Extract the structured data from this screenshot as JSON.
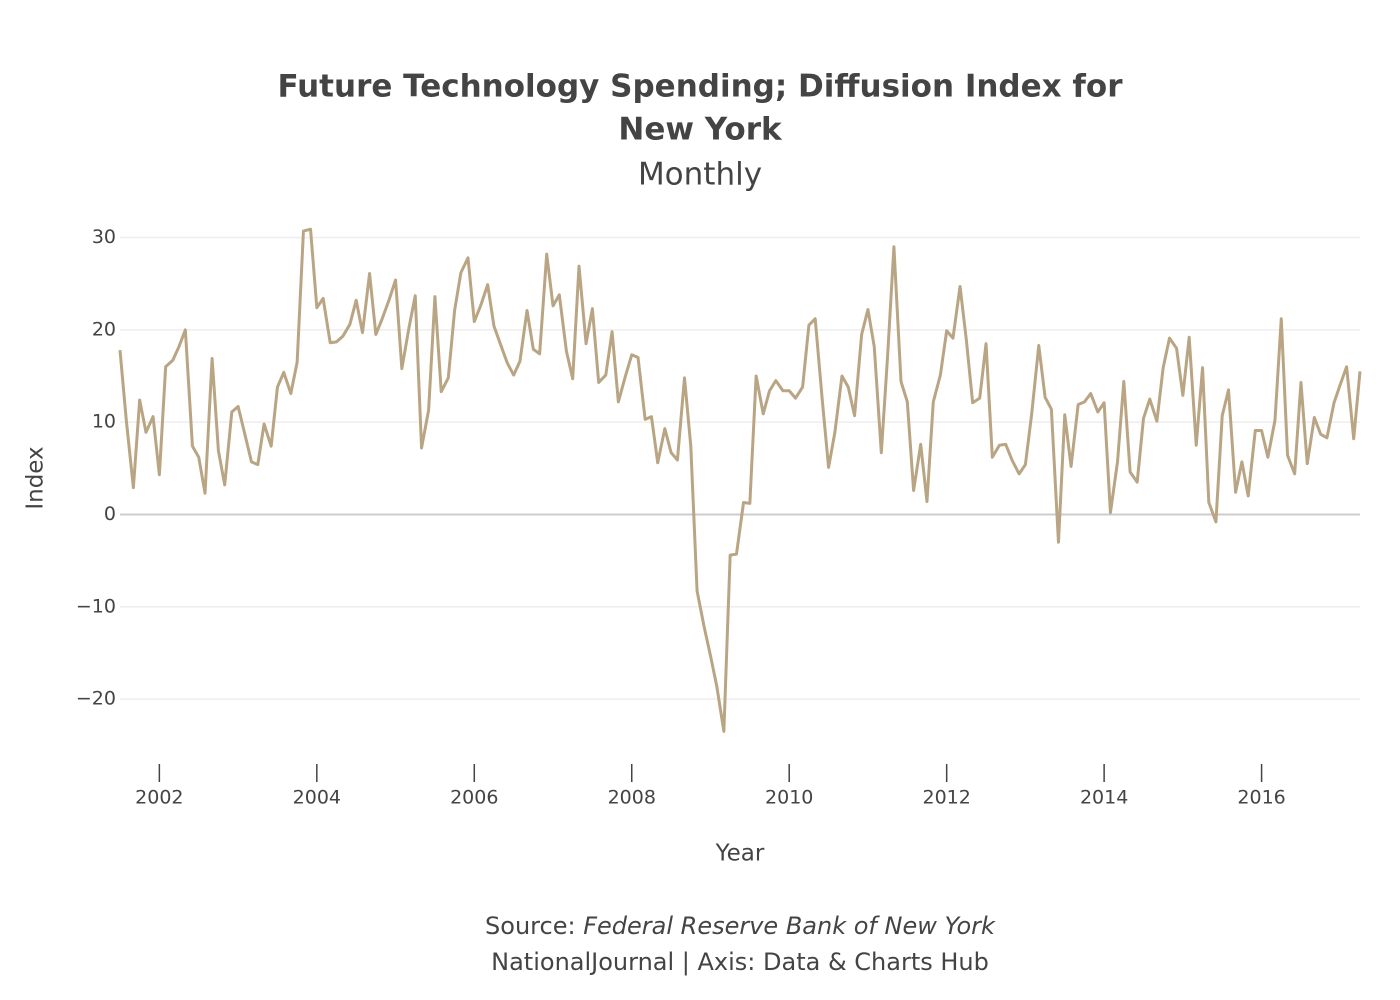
{
  "chart_data": {
    "type": "line",
    "title": [
      "Future Technology Spending; Diffusion Index for",
      "New York"
    ],
    "subtitle": "Monthly",
    "x_label": "Year",
    "y_label": "Index",
    "source_label": "Source:",
    "source": "Federal Reserve Bank of New York",
    "credit": "NationalJournal | Axis: Data & Charts Hub",
    "color": "#b9a583",
    "xlim": [
      2001.5,
      2017.25
    ],
    "xticks": [
      2002,
      2004,
      2006,
      2008,
      2010,
      2012,
      2014,
      2016
    ],
    "ylim": [
      -26.6,
      31.9
    ],
    "yticks": [
      {
        "value": -20,
        "label": "−20"
      },
      {
        "value": -10,
        "label": "−10"
      },
      0,
      10,
      20,
      30
    ],
    "grid": true,
    "x": [
      2001.5,
      2001.58,
      2001.67,
      2001.75,
      2001.83,
      2001.92,
      2002,
      2002.08,
      2002.17,
      2002.25,
      2002.33,
      2002.42,
      2002.5,
      2002.58,
      2002.67,
      2002.75,
      2002.83,
      2002.92,
      2003,
      2003.08,
      2003.17,
      2003.25,
      2003.33,
      2003.42,
      2003.5,
      2003.58,
      2003.67,
      2003.75,
      2003.83,
      2003.92,
      2004,
      2004.08,
      2004.17,
      2004.25,
      2004.33,
      2004.42,
      2004.5,
      2004.58,
      2004.67,
      2004.75,
      2004.83,
      2004.92,
      2005,
      2005.08,
      2005.17,
      2005.25,
      2005.33,
      2005.42,
      2005.5,
      2005.58,
      2005.67,
      2005.75,
      2005.83,
      2005.92,
      2006,
      2006.08,
      2006.17,
      2006.25,
      2006.33,
      2006.42,
      2006.5,
      2006.58,
      2006.67,
      2006.75,
      2006.83,
      2006.92,
      2007,
      2007.08,
      2007.17,
      2007.25,
      2007.33,
      2007.42,
      2007.5,
      2007.58,
      2007.67,
      2007.75,
      2007.83,
      2007.92,
      2008,
      2008.08,
      2008.17,
      2008.25,
      2008.33,
      2008.42,
      2008.5,
      2008.58,
      2008.67,
      2008.75,
      2008.83,
      2008.92,
      2009,
      2009.08,
      2009.17,
      2009.25,
      2009.33,
      2009.42,
      2009.5,
      2009.58,
      2009.67,
      2009.75,
      2009.83,
      2009.92,
      2010,
      2010.08,
      2010.17,
      2010.25,
      2010.33,
      2010.42,
      2010.5,
      2010.58,
      2010.67,
      2010.75,
      2010.83,
      2010.92,
      2011,
      2011.08,
      2011.17,
      2011.25,
      2011.33,
      2011.42,
      2011.5,
      2011.58,
      2011.67,
      2011.75,
      2011.83,
      2011.92,
      2012,
      2012.08,
      2012.17,
      2012.25,
      2012.33,
      2012.42,
      2012.5,
      2012.58,
      2012.67,
      2012.75,
      2012.83,
      2012.92,
      2013,
      2013.08,
      2013.17,
      2013.25,
      2013.33,
      2013.42,
      2013.5,
      2013.58,
      2013.67,
      2013.75,
      2013.83,
      2013.92,
      2014,
      2014.08,
      2014.17,
      2014.25,
      2014.33,
      2014.42,
      2014.5,
      2014.58,
      2014.67,
      2014.75,
      2014.83,
      2014.92,
      2015,
      2015.08,
      2015.17,
      2015.25,
      2015.33,
      2015.42,
      2015.5,
      2015.58,
      2015.67,
      2015.75,
      2015.83,
      2015.92,
      2016,
      2016.08,
      2016.17,
      2016.25,
      2016.33,
      2016.42,
      2016.5,
      2016.58,
      2016.67,
      2016.75,
      2016.83,
      2016.92,
      2017,
      2017.08,
      2017.17,
      2017.25
    ],
    "values": [
      17.8,
      10.2,
      2.9,
      12.4,
      8.9,
      10.6,
      4.3,
      16.0,
      16.7,
      18.2,
      20.0,
      7.4,
      6.2,
      2.3,
      16.9,
      6.9,
      3.2,
      11.1,
      11.7,
      8.9,
      5.7,
      5.4,
      9.8,
      7.4,
      13.8,
      15.4,
      13.1,
      16.5,
      30.7,
      30.9,
      22.4,
      23.4,
      18.6,
      18.7,
      19.3,
      20.6,
      23.2,
      19.7,
      26.1,
      19.5,
      21.2,
      23.3,
      25.4,
      15.8,
      20.2,
      23.7,
      7.2,
      11.3,
      23.6,
      13.3,
      14.8,
      22.1,
      26.2,
      27.8,
      20.9,
      22.6,
      24.9,
      20.4,
      18.5,
      16.4,
      15.1,
      16.6,
      22.1,
      17.9,
      17.4,
      28.2,
      22.6,
      23.8,
      17.7,
      14.7,
      26.9,
      18.5,
      22.3,
      14.3,
      15.1,
      19.8,
      12.2,
      15.0,
      17.3,
      17.0,
      10.3,
      10.6,
      5.6,
      9.3,
      6.7,
      5.9,
      14.8,
      7.4,
      -8.3,
      -12.2,
      -15.3,
      -18.6,
      -23.5,
      -4.4,
      -4.3,
      1.3,
      1.2,
      15.0,
      10.9,
      13.4,
      14.5,
      13.4,
      13.4,
      12.6,
      13.8,
      20.5,
      21.2,
      12.4,
      5.1,
      8.9,
      15.0,
      13.8,
      10.7,
      19.5,
      22.2,
      18.2,
      6.7,
      17.2,
      29.0,
      14.4,
      12.2,
      2.6,
      7.6,
      1.4,
      12.2,
      15.1,
      19.9,
      19.1,
      24.7,
      18.9,
      12.1,
      12.6,
      18.5,
      6.2,
      7.5,
      7.6,
      5.9,
      4.4,
      5.4,
      10.9,
      18.3,
      12.7,
      11.4,
      -3.0,
      10.8,
      5.2,
      11.9,
      12.2,
      13.1,
      11.1,
      12.1,
      0.2,
      5.7,
      14.4,
      4.6,
      3.5,
      10.4,
      12.5,
      10.1,
      15.9,
      19.1,
      18.0,
      12.9,
      19.2,
      7.5,
      15.9,
      1.3,
      -0.8,
      10.7,
      13.5,
      2.4,
      5.7,
      2.0,
      9.1,
      9.1,
      6.2,
      10.2,
      21.2,
      6.4,
      4.4,
      14.3,
      5.5,
      10.5,
      8.7,
      8.3,
      12.1,
      14.1,
      16.0,
      8.2,
      15.5
    ]
  }
}
